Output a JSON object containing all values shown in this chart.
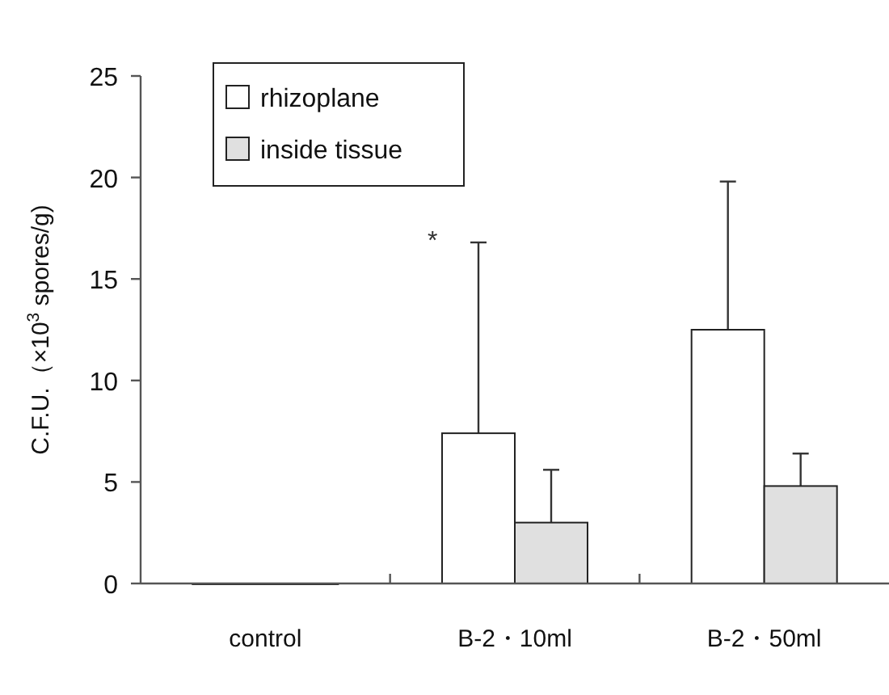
{
  "chart_data": {
    "type": "bar",
    "ylabel": "C.F.U.（×10$^{3}$ spores/g)",
    "categories": [
      "control",
      "B-2・10ml",
      "B-2・50ml"
    ],
    "series": [
      {
        "name": "rhizoplane",
        "color": "#ffffff",
        "values": [
          0,
          7.4,
          12.5
        ],
        "errors": [
          null,
          [
            7.4,
            16.8
          ],
          [
            12.5,
            19.8
          ]
        ]
      },
      {
        "name": "inside tissue",
        "color": "#e0e0e0",
        "values": [
          0,
          3.0,
          4.8
        ],
        "errors": [
          null,
          [
            3.0,
            5.6
          ],
          [
            4.8,
            6.4
          ]
        ]
      }
    ],
    "ylim": [
      0,
      25
    ],
    "yticks": [
      0,
      5,
      10,
      15,
      20,
      25
    ],
    "grid": false,
    "legend": "top left",
    "annotations": [
      "*"
    ]
  }
}
